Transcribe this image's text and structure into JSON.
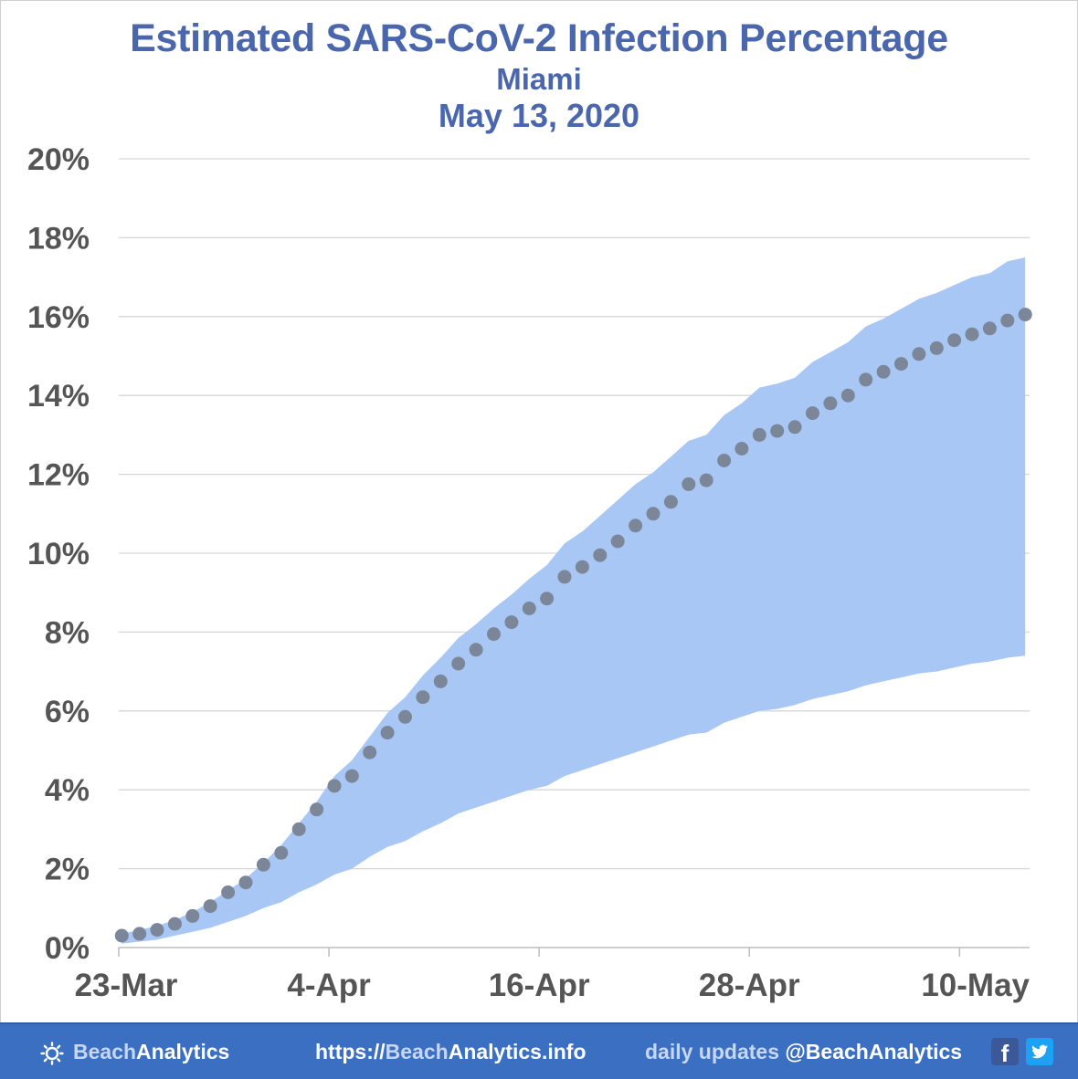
{
  "chart_data": {
    "type": "area",
    "title": "Estimated SARS-CoV-2 Infection Percentage",
    "subtitle_lines": [
      "Miami",
      "May 13, 2020"
    ],
    "xlabel": "",
    "ylabel": "",
    "x_tick_labels": [
      "23-Mar",
      "4-Apr",
      "16-Apr",
      "28-Apr",
      "10-May"
    ],
    "x_tick_day_index": [
      0,
      12,
      24,
      36,
      48
    ],
    "x_range_days": [
      0,
      52
    ],
    "y_tick_labels": [
      "0%",
      "2%",
      "4%",
      "6%",
      "8%",
      "10%",
      "12%",
      "14%",
      "16%",
      "18%",
      "20%"
    ],
    "ylim": [
      0,
      20
    ],
    "y_unit": "%",
    "grid": true,
    "start_date": "23-Mar",
    "series": [
      {
        "role": "estimate",
        "style": "dots",
        "color": "#7b8798",
        "values": [
          0.3,
          0.35,
          0.45,
          0.6,
          0.8,
          1.05,
          1.4,
          1.65,
          2.1,
          2.4,
          3.0,
          3.5,
          4.1,
          4.35,
          4.95,
          5.45,
          5.85,
          6.35,
          6.75,
          7.2,
          7.55,
          7.95,
          8.25,
          8.6,
          8.85,
          9.4,
          9.65,
          9.95,
          10.3,
          10.7,
          11.0,
          11.3,
          11.75,
          11.85,
          12.35,
          12.65,
          13.0,
          13.1,
          13.2,
          13.55,
          13.8,
          14.0,
          14.4,
          14.6,
          14.8,
          15.05,
          15.2,
          15.4,
          15.55,
          15.7,
          15.9,
          16.05
        ]
      },
      {
        "role": "upper-bound",
        "style": "band",
        "color": "#a9c7f5",
        "values": [
          0.35,
          0.45,
          0.55,
          0.7,
          0.9,
          1.15,
          1.45,
          1.75,
          2.15,
          2.6,
          3.15,
          3.7,
          4.35,
          4.75,
          5.35,
          5.95,
          6.35,
          6.9,
          7.35,
          7.85,
          8.2,
          8.6,
          8.95,
          9.35,
          9.7,
          10.25,
          10.55,
          10.95,
          11.35,
          11.75,
          12.05,
          12.45,
          12.85,
          13.0,
          13.5,
          13.8,
          14.2,
          14.3,
          14.45,
          14.85,
          15.1,
          15.35,
          15.75,
          15.95,
          16.2,
          16.45,
          16.6,
          16.8,
          17.0,
          17.1,
          17.4,
          17.5
        ]
      },
      {
        "role": "lower-bound",
        "style": "band",
        "color": "#a9c7f5",
        "values": [
          0.1,
          0.15,
          0.2,
          0.3,
          0.4,
          0.5,
          0.65,
          0.8,
          1.0,
          1.15,
          1.4,
          1.6,
          1.85,
          2.0,
          2.3,
          2.55,
          2.7,
          2.95,
          3.15,
          3.4,
          3.55,
          3.7,
          3.85,
          4.0,
          4.1,
          4.35,
          4.5,
          4.65,
          4.8,
          4.95,
          5.1,
          5.25,
          5.4,
          5.45,
          5.7,
          5.85,
          6.0,
          6.05,
          6.15,
          6.3,
          6.4,
          6.5,
          6.65,
          6.75,
          6.85,
          6.95,
          7.0,
          7.1,
          7.2,
          7.25,
          7.35,
          7.4
        ]
      }
    ]
  },
  "footer": {
    "brand_part1": "BeachAnalytics",
    "brand_light": "Beach",
    "brand_bold": "Analytics",
    "url_prefix": "https://",
    "url_light": "Beach",
    "url_rest": "Analytics.info",
    "updates_light": "daily updates",
    "updates_handle": "@BeachAnalytics",
    "facebook_glyph": "f",
    "twitter_glyph": "🐦",
    "colors": {
      "bar": "#3b6fc2",
      "light_text": "#c6d7f5",
      "facebook": "#3b5998",
      "twitter": "#1da1f2"
    }
  },
  "icons": [
    "sun-icon",
    "facebook-icon",
    "twitter-icon"
  ]
}
